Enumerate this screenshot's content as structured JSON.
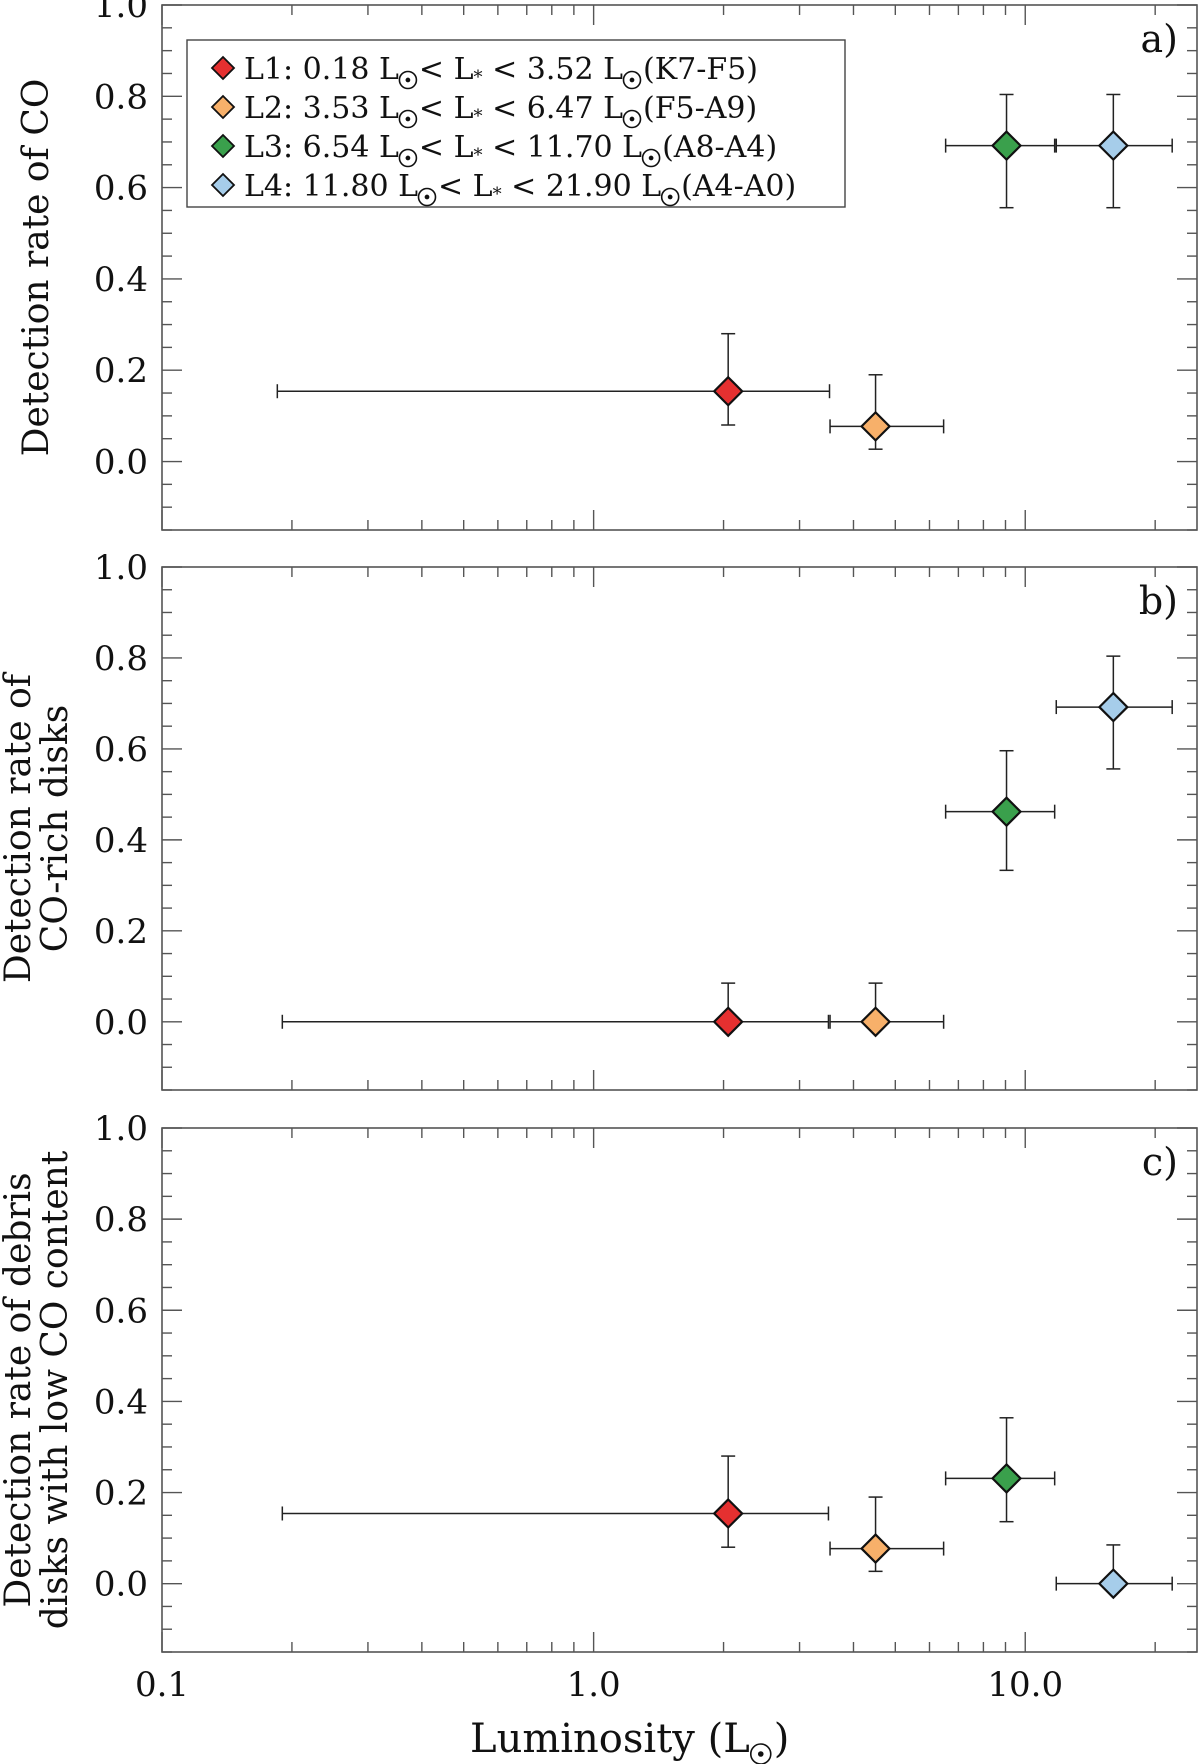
{
  "chart_data": [
    {
      "type": "scatter",
      "panel_label": "a)",
      "ylabel": [
        "Detection rate of CO"
      ],
      "xscale": "log",
      "xlim": [
        0.1,
        25
      ],
      "ylim": [
        -0.15,
        1.0
      ],
      "yticks": [
        "0.0",
        "0.2",
        "0.4",
        "0.6",
        "0.8",
        "1.0"
      ],
      "xticks": [],
      "legend": {
        "location": "top-left",
        "entries": [
          {
            "prefix": "L1: 0.18 L",
            "mid1": "< L",
            "mid2": " < 3.52 L",
            "suffix": "(K7-F5)",
            "color": "#e53030"
          },
          {
            "prefix": "L2: 3.53 L",
            "mid1": "< L",
            "mid2": " < 6.47 L",
            "suffix": "(F5-A9)",
            "color": "#f7b06a"
          },
          {
            "prefix": "L3: 6.54 L",
            "mid1": "< L",
            "mid2": " < 11.70 L",
            "suffix": "(A8-A4)",
            "color": "#3aa04c"
          },
          {
            "prefix": "L4: 11.80 L",
            "mid1": "< L",
            "mid2": " < 21.90 L",
            "suffix": "(A4-A0)",
            "color": "#a6cdea"
          }
        ]
      },
      "series": [
        {
          "name": "L1",
          "color": "#e53030",
          "x": 2.05,
          "y": 0.154,
          "x_err": [
            0.185,
            3.52
          ],
          "y_err": [
            0.08,
            0.28
          ]
        },
        {
          "name": "L2",
          "color": "#f7b06a",
          "x": 4.5,
          "y": 0.077,
          "x_err": [
            3.53,
            6.47
          ],
          "y_err": [
            0.027,
            0.19
          ]
        },
        {
          "name": "L3",
          "color": "#3aa04c",
          "x": 9.05,
          "y": 0.692,
          "x_err": [
            6.54,
            11.7
          ],
          "y_err": [
            0.556,
            0.804
          ]
        },
        {
          "name": "L4",
          "color": "#a6cdea",
          "x": 16.0,
          "y": 0.692,
          "x_err": [
            11.8,
            21.9
          ],
          "y_err": [
            0.556,
            0.804
          ]
        }
      ]
    },
    {
      "type": "scatter",
      "panel_label": "b)",
      "ylabel": [
        "Detection rate of",
        "CO-rich disks"
      ],
      "xscale": "log",
      "xlim": [
        0.1,
        25
      ],
      "ylim": [
        -0.15,
        1.0
      ],
      "yticks": [
        "0.0",
        "0.2",
        "0.4",
        "0.6",
        "0.8",
        "1.0"
      ],
      "xticks": [],
      "series": [
        {
          "name": "L1",
          "color": "#e53030",
          "x": 2.05,
          "y": 0.0,
          "x_err": [
            0.19,
            3.5
          ],
          "y_err": [
            0.0,
            0.085
          ]
        },
        {
          "name": "L2",
          "color": "#f7b06a",
          "x": 4.5,
          "y": 0.0,
          "x_err": [
            3.53,
            6.47
          ],
          "y_err": [
            0.0,
            0.085
          ]
        },
        {
          "name": "L3",
          "color": "#3aa04c",
          "x": 9.05,
          "y": 0.462,
          "x_err": [
            6.54,
            11.7
          ],
          "y_err": [
            0.333,
            0.596
          ]
        },
        {
          "name": "L4",
          "color": "#a6cdea",
          "x": 16.0,
          "y": 0.692,
          "x_err": [
            11.8,
            21.9
          ],
          "y_err": [
            0.556,
            0.804
          ]
        }
      ]
    },
    {
      "type": "scatter",
      "panel_label": "c)",
      "ylabel": [
        "Detection rate of debris",
        "disks with low CO content"
      ],
      "xlabel_prefix": "Luminosity (L",
      "xlabel_suffix": ")",
      "xscale": "log",
      "xlim": [
        0.1,
        25
      ],
      "ylim": [
        -0.15,
        1.0
      ],
      "yticks": [
        "0.0",
        "0.2",
        "0.4",
        "0.6",
        "0.8",
        "1.0"
      ],
      "xticks": [
        "0.1",
        "1.0",
        "10.0"
      ],
      "series": [
        {
          "name": "L1",
          "color": "#e53030",
          "x": 2.05,
          "y": 0.154,
          "x_err": [
            0.19,
            3.5
          ],
          "y_err": [
            0.08,
            0.28
          ]
        },
        {
          "name": "L2",
          "color": "#f7b06a",
          "x": 4.5,
          "y": 0.077,
          "x_err": [
            3.53,
            6.47
          ],
          "y_err": [
            0.027,
            0.19
          ]
        },
        {
          "name": "L3",
          "color": "#3aa04c",
          "x": 9.05,
          "y": 0.231,
          "x_err": [
            6.54,
            11.7
          ],
          "y_err": [
            0.136,
            0.364
          ]
        },
        {
          "name": "L4",
          "color": "#a6cdea",
          "x": 16.0,
          "y": 0.0,
          "x_err": [
            11.8,
            21.9
          ],
          "y_err": [
            0.0,
            0.085
          ]
        }
      ]
    }
  ]
}
